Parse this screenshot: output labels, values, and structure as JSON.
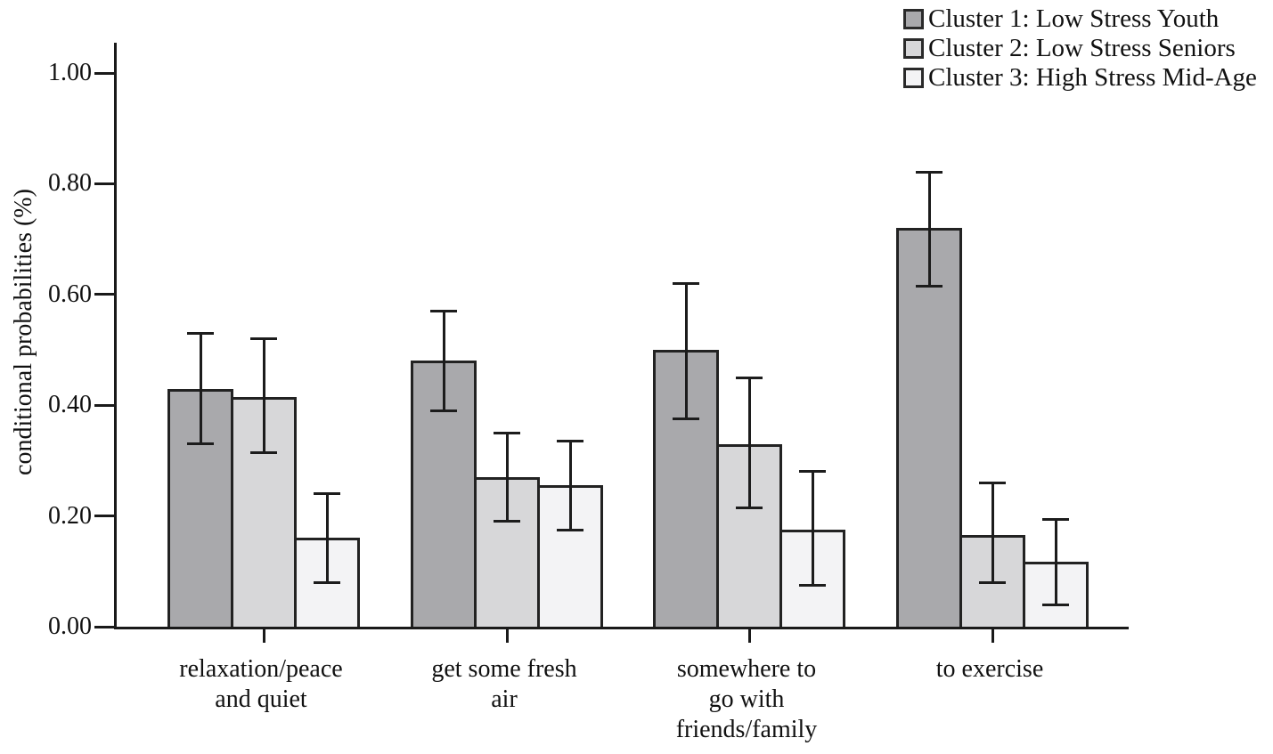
{
  "figure": {
    "background": "#ffffff",
    "axis_color": "#1a1a1a",
    "bar_border_color": "#222222",
    "error_bar_color": "#1c1c1c",
    "text_color": "#111111"
  },
  "chart_data": {
    "type": "bar",
    "title": "",
    "xlabel": "",
    "ylabel": "conditional probabilities (%)",
    "ylim": [
      0,
      1.0
    ],
    "yticks": [
      0.0,
      0.2,
      0.4,
      0.6,
      0.8,
      1.0
    ],
    "ytick_labels": [
      "0.00",
      "0.20",
      "0.40",
      "0.60",
      "0.80",
      "1.00"
    ],
    "grid": false,
    "error_bars": true,
    "legend_position": "top-right",
    "categories": [
      "relaxation/peace and quiet",
      "get some fresh air",
      "somewhere to go with friends/family",
      "to exercise"
    ],
    "category_label_lines": [
      [
        "relaxation/peace",
        "and quiet"
      ],
      [
        "get some fresh",
        "air"
      ],
      [
        "somewhere to",
        "go with",
        "friends/family"
      ],
      [
        "to exercise"
      ]
    ],
    "series": [
      {
        "name": "Cluster 1: Low Stress Youth",
        "color": "#a9a9ac",
        "values": [
          0.43,
          0.48,
          0.5,
          0.72
        ],
        "error_low": [
          0.33,
          0.39,
          0.375,
          0.615
        ],
        "error_high": [
          0.53,
          0.57,
          0.62,
          0.82
        ]
      },
      {
        "name": "Cluster 2: Low Stress Seniors",
        "color": "#d7d7d9",
        "values": [
          0.415,
          0.27,
          0.33,
          0.165
        ],
        "error_low": [
          0.315,
          0.19,
          0.215,
          0.08
        ],
        "error_high": [
          0.52,
          0.35,
          0.45,
          0.26
        ]
      },
      {
        "name": "Cluster 3: High Stress Mid-Age",
        "color": "#f3f3f5",
        "values": [
          0.16,
          0.255,
          0.175,
          0.118
        ],
        "error_low": [
          0.08,
          0.175,
          0.075,
          0.04
        ],
        "error_high": [
          0.24,
          0.335,
          0.28,
          0.193
        ]
      }
    ]
  }
}
